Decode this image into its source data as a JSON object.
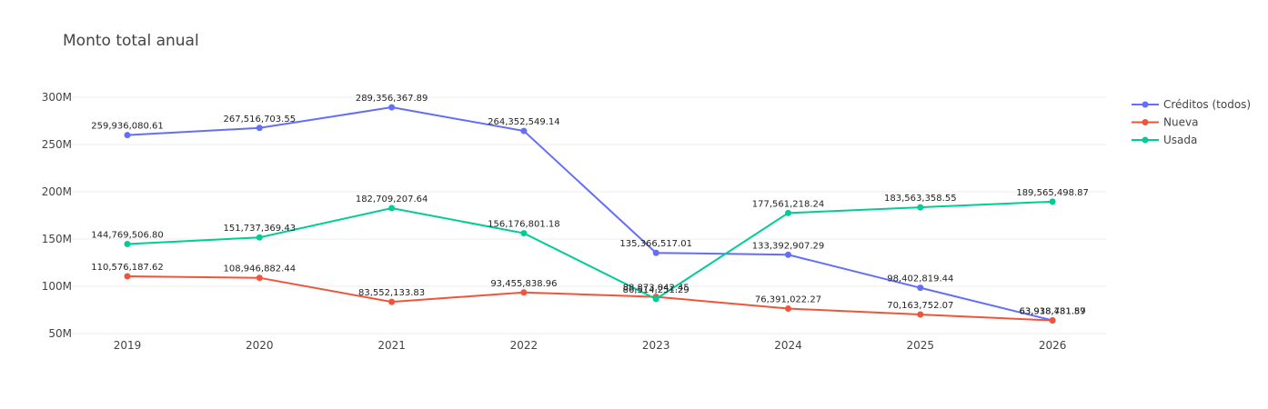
{
  "chart_data": {
    "type": "line",
    "title": "Monto total anual",
    "xlabel": "",
    "ylabel": "",
    "categories": [
      "2019",
      "2020",
      "2021",
      "2022",
      "2023",
      "2024",
      "2025",
      "2026"
    ],
    "ylim": [
      50000000,
      310000000
    ],
    "yticks": [
      {
        "value": 50000000,
        "label": "50M"
      },
      {
        "value": 100000000,
        "label": "100M"
      },
      {
        "value": 150000000,
        "label": "150M"
      },
      {
        "value": 200000000,
        "label": "200M"
      },
      {
        "value": 250000000,
        "label": "250M"
      },
      {
        "value": 300000000,
        "label": "300M"
      }
    ],
    "grid": true,
    "legend": "top-right",
    "series": [
      {
        "name": "Créditos (todos)",
        "color": "#636efa",
        "values": [
          259936080.61,
          267516703.55,
          289356367.89,
          264352549.14,
          135366517.01,
          133392907.29,
          98402819.44,
          63938731.57
        ],
        "labels": [
          "259,936,080.61",
          "267,516,703.55",
          "289,356,367.89",
          "264,352,549.14",
          "135,366,517.01",
          "133,392,907.29",
          "98,402,819.44",
          "63,938,731.57"
        ]
      },
      {
        "name": "Nueva",
        "color": "#ef553b",
        "values": [
          110576187.62,
          108946882.44,
          83552133.83,
          93455838.96,
          88873042.45,
          76391022.27,
          70163752.07,
          63918481.89
        ],
        "labels": [
          "110,576,187.62",
          "108,946,882.44",
          "83,552,133.83",
          "93,455,838.96",
          "88,873,042.45",
          "76,391,022.27",
          "70,163,752.07",
          "63,918,481.89"
        ]
      },
      {
        "name": "Usada",
        "color": "#00cc96",
        "values": [
          144769506.8,
          151737369.43,
          182709207.64,
          156176801.18,
          86514251.29,
          177561218.24,
          183563358.55,
          189565498.87
        ],
        "labels": [
          "144,769,506.80",
          "151,737,369.43",
          "182,709,207.64",
          "156,176,801.18",
          "86,514,251.29",
          "177,561,218.24",
          "183,563,358.55",
          "189,565,498.87"
        ]
      }
    ]
  }
}
